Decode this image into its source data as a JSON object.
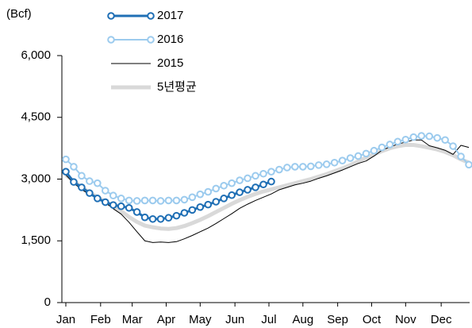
{
  "chart_data": {
    "type": "line",
    "y_label": "(Bcf)",
    "x": [
      1,
      2,
      3,
      4,
      5,
      6,
      7,
      8,
      9,
      10,
      11,
      12,
      13,
      14,
      15,
      16,
      17,
      18,
      19,
      20,
      21,
      22,
      23,
      24,
      25,
      26,
      27,
      28,
      29,
      30,
      31,
      32,
      33,
      34,
      35,
      36,
      37,
      38,
      39,
      40,
      41,
      42,
      43,
      44,
      45,
      46,
      47,
      48,
      49,
      50,
      51,
      52
    ],
    "xlim": [
      0.5,
      52.5
    ],
    "xticks": [
      {
        "value": 1,
        "label": "Jan"
      },
      {
        "value": 5.4,
        "label": "Feb"
      },
      {
        "value": 9.4,
        "label": "Mar"
      },
      {
        "value": 13.7,
        "label": "Apr"
      },
      {
        "value": 18.0,
        "label": "May"
      },
      {
        "value": 22.4,
        "label": "Jun"
      },
      {
        "value": 26.7,
        "label": "Jul"
      },
      {
        "value": 31.0,
        "label": "Aug"
      },
      {
        "value": 35.4,
        "label": "Sep"
      },
      {
        "value": 39.7,
        "label": "Oct"
      },
      {
        "value": 44.0,
        "label": "Nov"
      },
      {
        "value": 48.5,
        "label": "Dec"
      }
    ],
    "ylim": [
      0,
      6000
    ],
    "yticks": [
      0,
      {
        "value": 1500,
        "label": "1,500"
      },
      {
        "value": 3000,
        "label": "3,000"
      },
      {
        "value": 4500,
        "label": "4,500"
      },
      {
        "value": 6000,
        "label": "6,000"
      }
    ],
    "legend": "top",
    "series": [
      {
        "name": "2017",
        "color": "#1f6fb5",
        "line_width": 3,
        "marker": "circle",
        "values": [
          3180,
          2930,
          2800,
          2660,
          2530,
          2440,
          2370,
          2340,
          2300,
          2200,
          2070,
          2030,
          2030,
          2060,
          2110,
          2180,
          2250,
          2320,
          2380,
          2450,
          2530,
          2610,
          2680,
          2740,
          2800,
          2870,
          2940,
          null,
          null,
          null,
          null,
          null,
          null,
          null,
          null,
          null,
          null,
          null,
          null,
          null,
          null,
          null,
          null,
          null,
          null,
          null,
          null,
          null,
          null,
          null,
          null,
          null
        ]
      },
      {
        "name": "2016",
        "color": "#9ccbee",
        "line_width": 2,
        "marker": "circle",
        "values": [
          3480,
          3300,
          3080,
          2950,
          2900,
          2720,
          2600,
          2530,
          2480,
          2470,
          2480,
          2480,
          2470,
          2480,
          2480,
          2500,
          2560,
          2630,
          2690,
          2770,
          2840,
          2900,
          2970,
          3020,
          3080,
          3130,
          3180,
          3230,
          3280,
          3300,
          3300,
          3310,
          3340,
          3360,
          3400,
          3450,
          3510,
          3560,
          3620,
          3690,
          3770,
          3840,
          3910,
          3960,
          4020,
          4050,
          4040,
          4000,
          3950,
          3800,
          3550,
          3350
        ]
      },
      {
        "name": "2015",
        "color": "#000000",
        "line_width": 1,
        "marker": null,
        "values": [
          3100,
          2900,
          2750,
          2620,
          2550,
          2430,
          2280,
          2150,
          1950,
          1720,
          1500,
          1460,
          1470,
          1460,
          1480,
          1550,
          1630,
          1720,
          1810,
          1920,
          2040,
          2160,
          2290,
          2390,
          2480,
          2560,
          2640,
          2740,
          2800,
          2860,
          2900,
          2950,
          3020,
          3080,
          3150,
          3220,
          3300,
          3380,
          3440,
          3560,
          3700,
          3780,
          3850,
          3900,
          3950,
          3950,
          3810,
          3760,
          3700,
          3600,
          3820,
          3770
        ]
      },
      {
        "name": "5년평균",
        "color": "#d9d9d9",
        "line_width": 5,
        "marker": null,
        "values": [
          3100,
          2950,
          2800,
          2670,
          2560,
          2450,
          2340,
          2220,
          2080,
          1960,
          1870,
          1830,
          1800,
          1790,
          1810,
          1860,
          1930,
          2010,
          2100,
          2200,
          2300,
          2400,
          2490,
          2570,
          2640,
          2700,
          2750,
          2800,
          2850,
          2900,
          2950,
          3000,
          3060,
          3120,
          3190,
          3260,
          3340,
          3430,
          3520,
          3600,
          3680,
          3750,
          3800,
          3830,
          3830,
          3800,
          3760,
          3720,
          3660,
          3580,
          3480,
          3400
        ]
      }
    ]
  }
}
